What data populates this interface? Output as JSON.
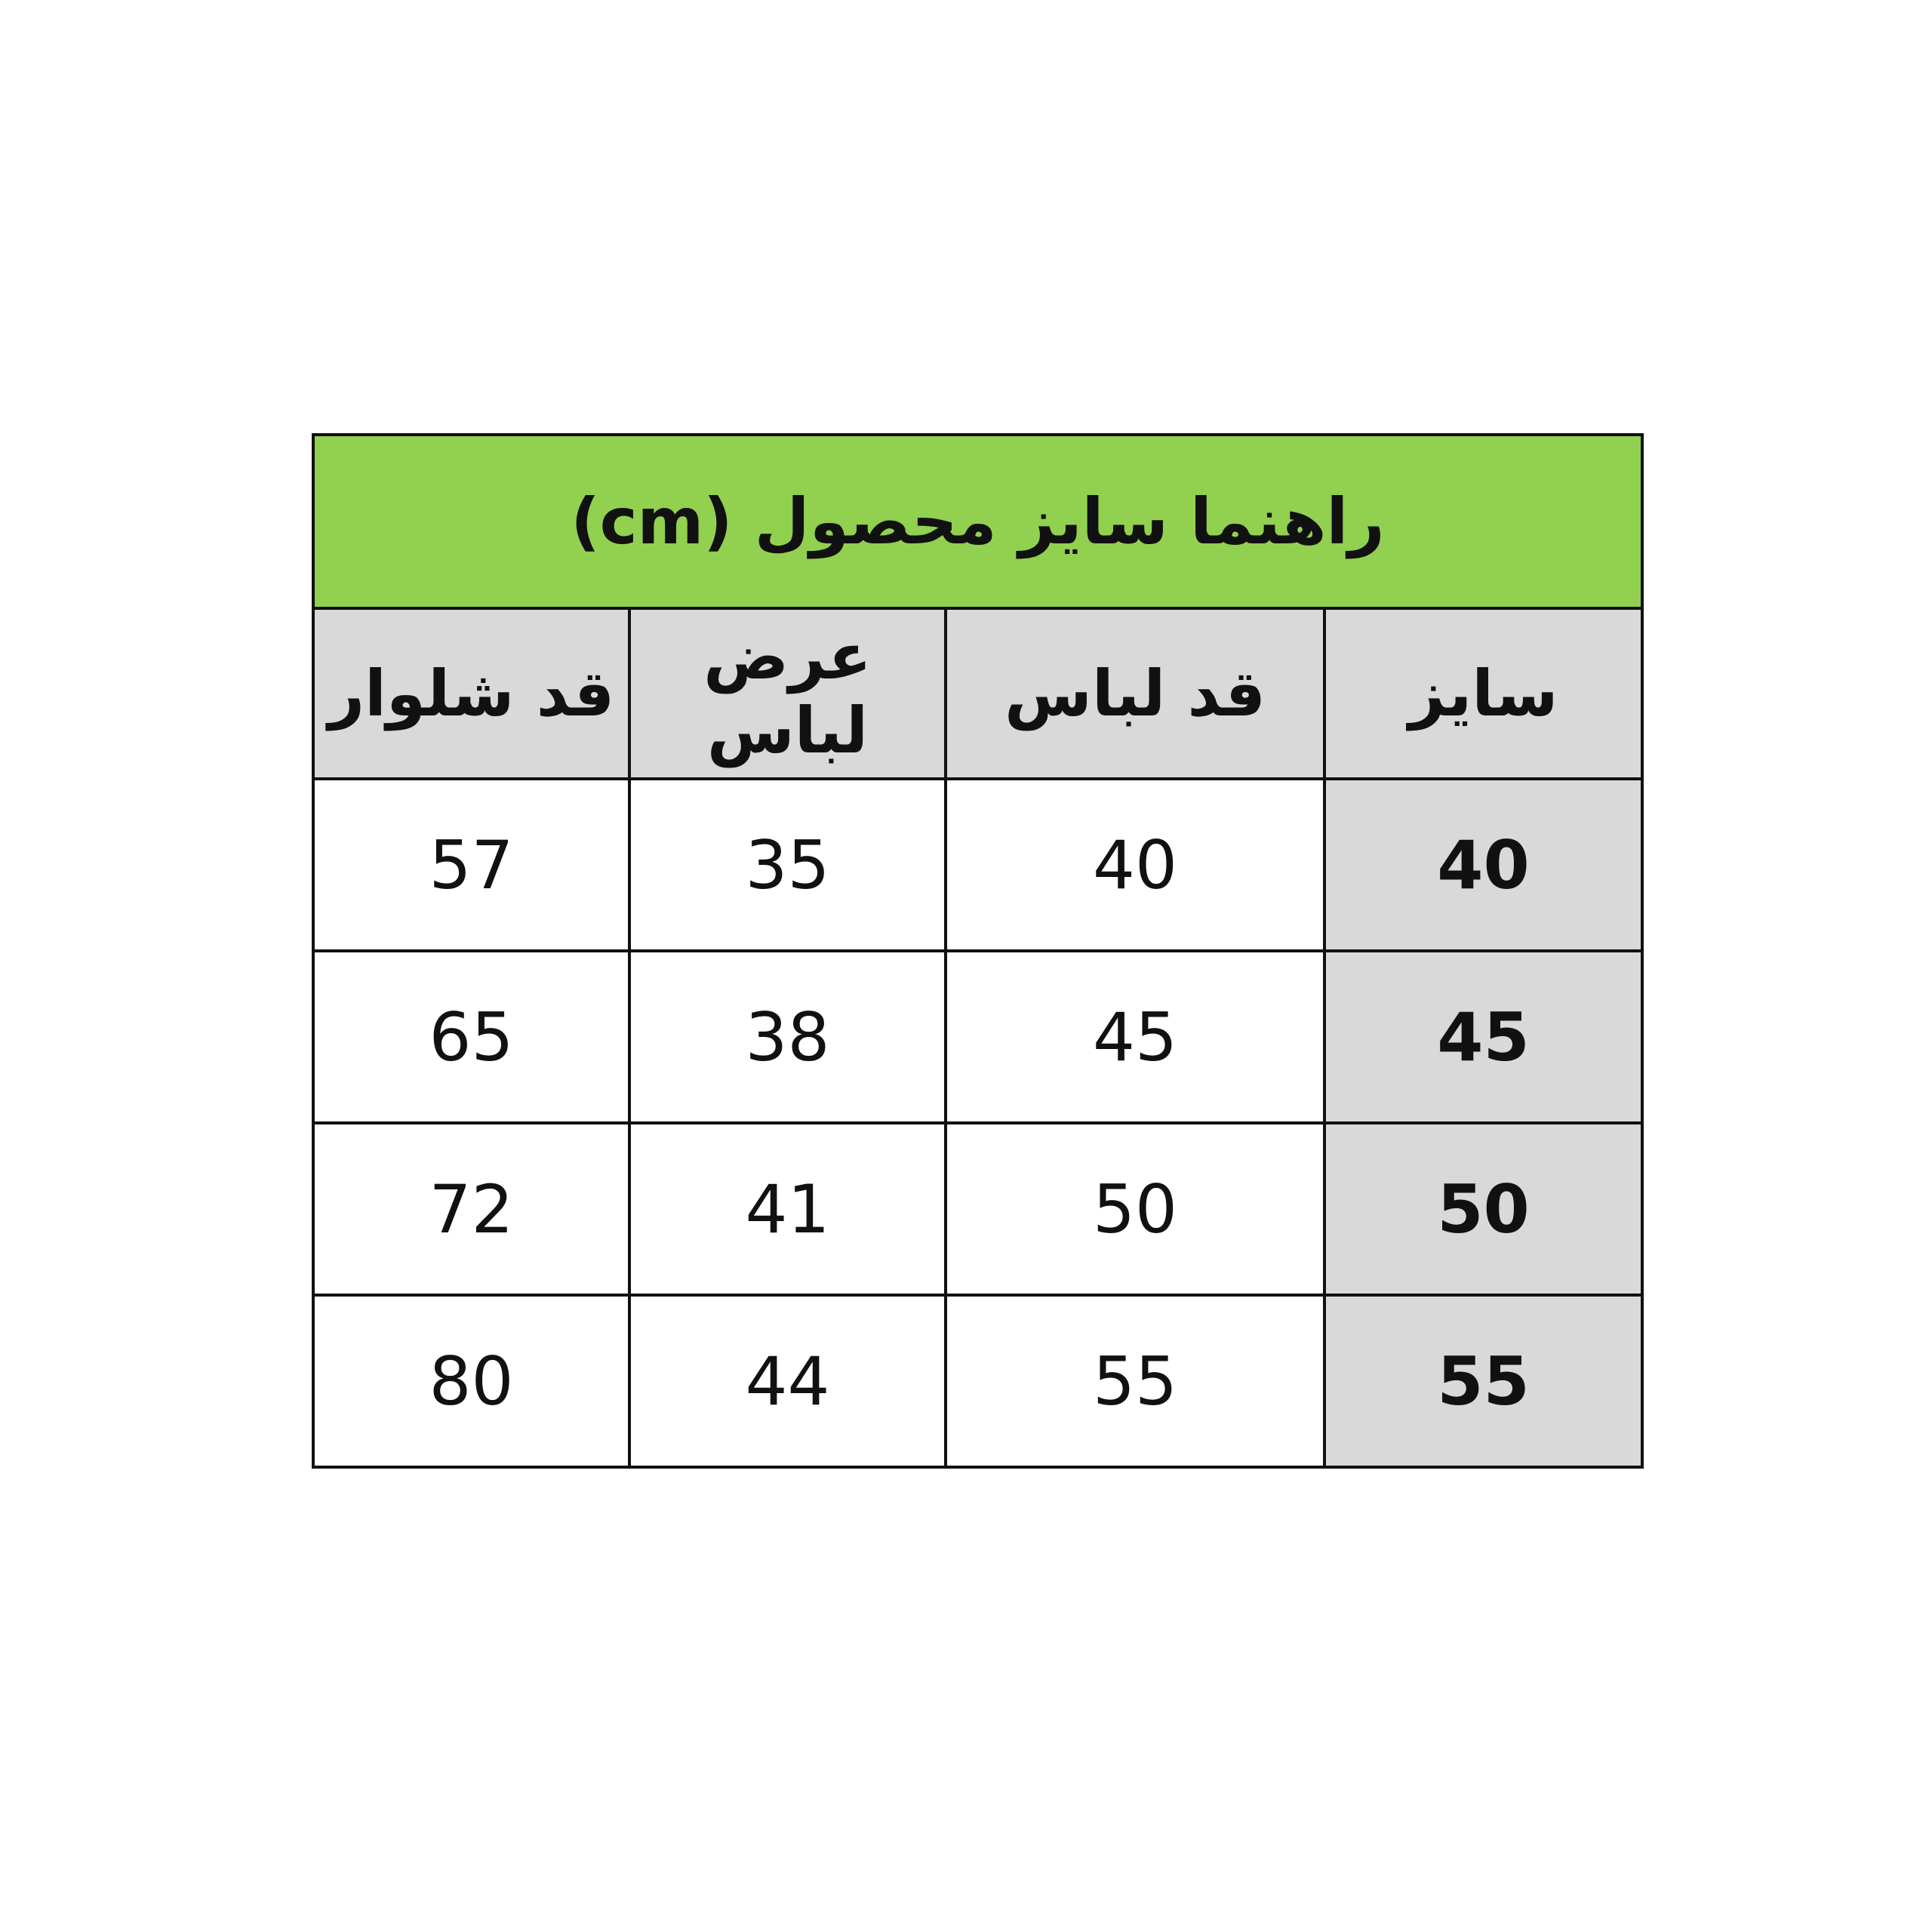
{
  "table": {
    "title": "راهنما سایز محصول (cm)",
    "title_bg": "#92d050",
    "header_bg": "#d9d9d9",
    "columns": [
      "سایز",
      "قد لباس",
      "عرض لباس",
      "قد شلوار"
    ],
    "rows": [
      [
        "40",
        "40",
        "35",
        "57"
      ],
      [
        "45",
        "45",
        "38",
        "65"
      ],
      [
        "50",
        "50",
        "41",
        "72"
      ],
      [
        "55",
        "55",
        "44",
        "80"
      ]
    ]
  }
}
